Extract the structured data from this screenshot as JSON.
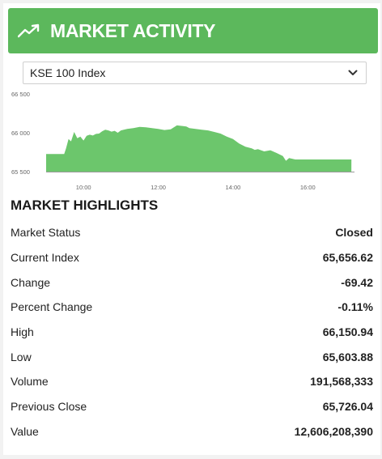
{
  "header": {
    "title": "MARKET ACTIVITY",
    "icon": "trending-up-icon",
    "color": "#5cb85c"
  },
  "index_select": {
    "selected": "KSE 100 Index",
    "icon": "chevron-down-icon"
  },
  "chart_data": {
    "type": "area",
    "color": "#6cc66c",
    "y_ticks": [
      "66 500",
      "66 000",
      "65 500"
    ],
    "x_ticks": [
      "10:00",
      "12:00",
      "14:00",
      "16:00"
    ],
    "ylim": [
      65500,
      66500
    ],
    "xlim": [
      "09:00",
      "17:15"
    ],
    "series": [
      {
        "x": [
          "09:00",
          "09:29",
          "09:32",
          "09:36",
          "09:40",
          "09:45",
          "09:50",
          "09:55",
          "10:00",
          "10:05",
          "10:10",
          "10:15",
          "10:20",
          "10:25",
          "10:30",
          "10:35",
          "10:40",
          "10:45",
          "10:50",
          "10:55",
          "11:00",
          "11:10",
          "11:20",
          "11:30",
          "11:40",
          "11:50",
          "12:00",
          "12:10",
          "12:20",
          "12:30",
          "12:40",
          "12:45",
          "12:50",
          "13:00",
          "13:10",
          "13:20",
          "13:30",
          "13:40",
          "13:50",
          "14:00",
          "14:10",
          "14:20",
          "14:30",
          "14:35",
          "14:40",
          "14:50",
          "15:00",
          "15:10",
          "15:20",
          "15:25",
          "15:30",
          "15:40",
          "16:00",
          "16:30",
          "17:10"
        ],
        "y": [
          65726,
          65726,
          65800,
          65920,
          65890,
          66010,
          65930,
          65950,
          65900,
          65960,
          65975,
          65965,
          65985,
          65990,
          66020,
          66040,
          66030,
          66015,
          66025,
          66000,
          66030,
          66050,
          66060,
          66075,
          66070,
          66060,
          66050,
          66035,
          66045,
          66095,
          66085,
          66080,
          66060,
          66050,
          66040,
          66030,
          66010,
          65990,
          65950,
          65920,
          65860,
          65820,
          65800,
          65780,
          65790,
          65760,
          65775,
          65740,
          65700,
          65640,
          65675,
          65656,
          65656,
          65656,
          65656
        ]
      }
    ]
  },
  "highlights": {
    "title": "MARKET HIGHLIGHTS",
    "rows": [
      {
        "label": "Market Status",
        "value": "Closed"
      },
      {
        "label": "Current Index",
        "value": "65,656.62"
      },
      {
        "label": "Change",
        "value": "-69.42"
      },
      {
        "label": "Percent Change",
        "value": "-0.11%"
      },
      {
        "label": "High",
        "value": "66,150.94"
      },
      {
        "label": "Low",
        "value": "65,603.88"
      },
      {
        "label": "Volume",
        "value": "191,568,333"
      },
      {
        "label": "Previous Close",
        "value": "65,726.04"
      },
      {
        "label": "Value",
        "value": "12,606,208,390"
      }
    ]
  }
}
